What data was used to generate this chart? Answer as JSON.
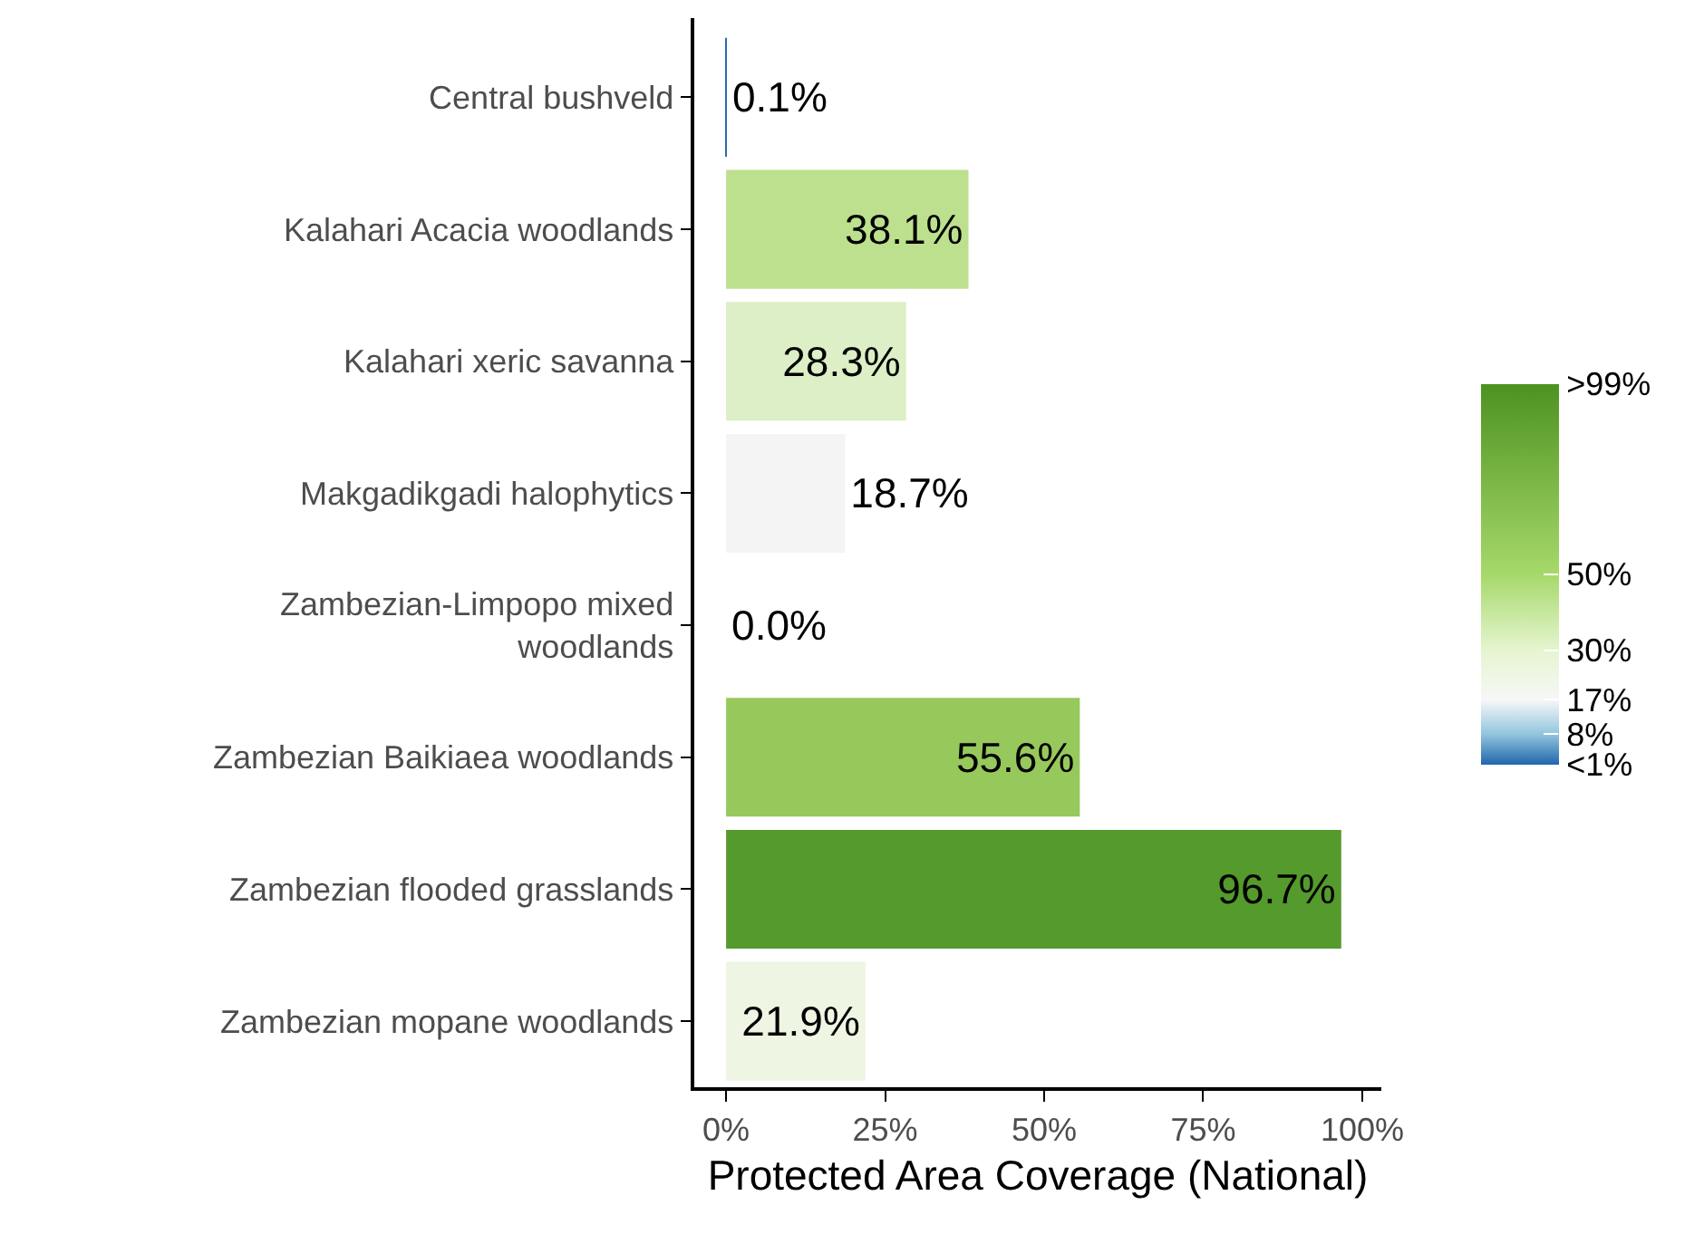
{
  "chart_data": {
    "type": "bar",
    "orientation": "horizontal",
    "xlabel": "Protected Area Coverage (National)",
    "categories": [
      "Central bushveld",
      "Kalahari Acacia woodlands",
      "Kalahari xeric savanna",
      "Makgadikgadi halophytics",
      "Zambezian-Limpopo mixed woodlands",
      "Zambezian Baikiaea woodlands",
      "Zambezian flooded grasslands",
      "Zambezian mopane woodlands"
    ],
    "values": [
      0.1,
      38.1,
      28.3,
      18.7,
      0.0,
      55.6,
      96.7,
      21.9
    ],
    "colors": [
      "#2a6cae",
      "#bde08f",
      "#dcefc6",
      "#f4f4f4",
      "#2166ac",
      "#97c85c",
      "#559a2c",
      "#eef5e3"
    ],
    "value_labels": [
      "0.1%",
      "38.1%",
      "28.3%",
      "18.7%",
      "0.0%",
      "55.6%",
      "96.7%",
      "21.9%"
    ],
    "xlim": [
      -5,
      103
    ],
    "xticks": [
      {
        "value": 0,
        "label": "0%"
      },
      {
        "value": 25,
        "label": "25%"
      },
      {
        "value": 50,
        "label": "50%"
      },
      {
        "value": 75,
        "label": "75%"
      },
      {
        "value": 100,
        "label": "100%"
      }
    ],
    "clim": [
      0,
      100
    ],
    "cticks": [
      {
        "value": 0,
        "label": "<1%"
      },
      {
        "value": 8,
        "label": "8%"
      },
      {
        "value": 17,
        "label": "17%"
      },
      {
        "value": 30,
        "label": "30%"
      },
      {
        "value": 50,
        "label": "50%"
      },
      {
        "value": 100,
        "label": ">99%"
      }
    ]
  }
}
